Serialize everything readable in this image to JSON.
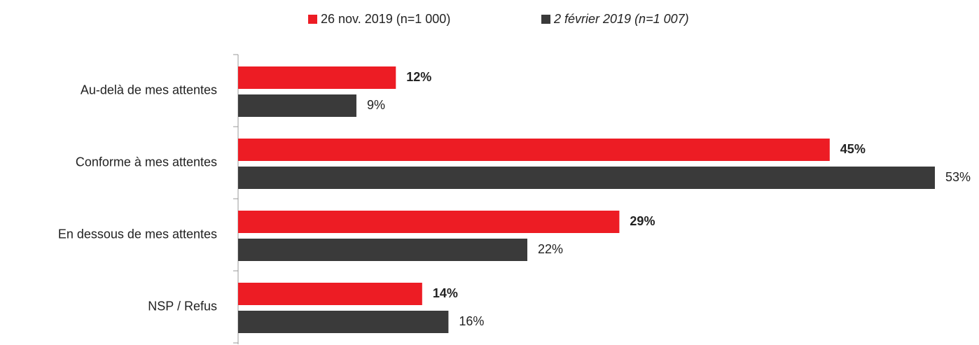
{
  "chart_data": {
    "type": "barh",
    "categories": [
      "Au-delà de mes attentes",
      "Conforme à mes attentes",
      "En dessous de mes attentes",
      "NSP / Refus"
    ],
    "series": [
      {
        "name": "26 nov. 2019 (n=1 000)",
        "color": "#ed1c24",
        "values": [
          12,
          45,
          29,
          14
        ],
        "value_labels": [
          "12%",
          "45%",
          "29%",
          "14%"
        ]
      },
      {
        "name": "2 février 2019 (n=1 007)",
        "color": "#3a3a3a",
        "values": [
          9,
          53,
          22,
          16
        ],
        "value_labels": [
          "9%",
          "53%",
          "22%",
          "16%"
        ]
      }
    ],
    "legend": "top"
  }
}
